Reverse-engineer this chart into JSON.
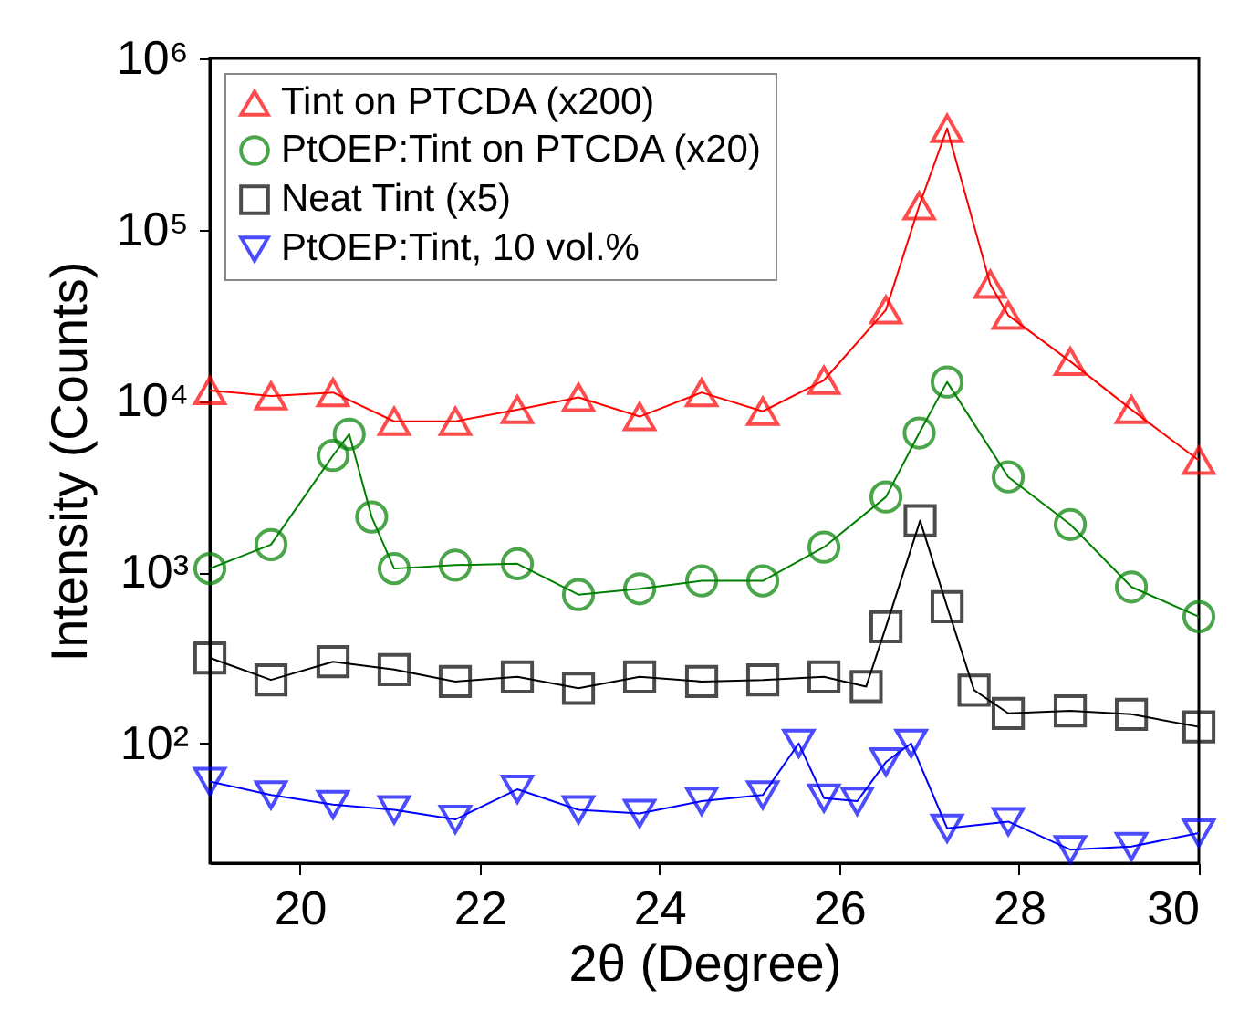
{
  "chart_data": {
    "type": "line",
    "xlabel": "2θ (Degree)",
    "ylabel": "Intensity (Counts)",
    "xlim": [
      19,
      30
    ],
    "xticks": [
      20,
      22,
      24,
      26,
      28,
      30
    ],
    "ylim": [
      20,
      1000000
    ],
    "yticks": [
      {
        "value": 100,
        "label": "10²"
      },
      {
        "value": 1000,
        "label": "10³"
      },
      {
        "value": 10000,
        "label": "10⁴"
      },
      {
        "value": 100000,
        "label": "10⁵"
      },
      {
        "value": 1000000,
        "label": "10⁶"
      }
    ],
    "log": "y",
    "grid": false,
    "legend": "top left",
    "series": [
      {
        "name": "Tint on PTCDA (x200)",
        "color": "#ff0000",
        "marker": "triangle",
        "x": [
          19.0,
          19.68,
          20.37,
          21.05,
          21.73,
          22.42,
          23.1,
          23.78,
          24.47,
          25.15,
          25.83,
          26.52,
          26.89,
          27.2,
          27.68,
          27.88,
          28.57,
          29.25,
          30.0
        ],
        "values": [
          11500,
          10700,
          11200,
          7600,
          7600,
          8900,
          10500,
          8100,
          11200,
          8700,
          13200,
          34000,
          138000,
          390000,
          48000,
          31600,
          17000,
          8900,
          4500
        ]
      },
      {
        "name": "PtOEP:Tint on PTCDA (x20)",
        "color": "#008000",
        "marker": "circle",
        "x": [
          19.0,
          19.68,
          20.37,
          20.55,
          20.8,
          21.05,
          21.73,
          22.42,
          23.1,
          23.78,
          24.47,
          25.15,
          25.83,
          26.52,
          26.89,
          27.2,
          27.88,
          28.57,
          29.25,
          30.0
        ],
        "values": [
          1050,
          1450,
          4800,
          6400,
          2100,
          1050,
          1100,
          1120,
          740,
          800,
          890,
          890,
          1400,
          2750,
          6500,
          12900,
          3600,
          1900,
          820,
          550
        ]
      },
      {
        "name": "Neat Tint (x5)",
        "color": "#000000",
        "marker": "square",
        "x": [
          19.0,
          19.68,
          20.37,
          21.05,
          21.73,
          22.42,
          23.1,
          23.78,
          24.47,
          25.15,
          25.83,
          26.3,
          26.52,
          26.9,
          27.2,
          27.5,
          27.88,
          28.57,
          29.25,
          30.0
        ],
        "values": [
          316,
          235,
          300,
          270,
          230,
          245,
          210,
          245,
          230,
          235,
          245,
          215,
          480,
          2000,
          630,
          205,
          150,
          155,
          148,
          125
        ]
      },
      {
        "name": "PtOEP:Tint, 10 vol.%",
        "color": "#0000ff",
        "marker": "triangle-down",
        "x": [
          19.0,
          19.68,
          20.37,
          21.05,
          21.73,
          22.42,
          23.1,
          23.78,
          24.47,
          25.15,
          25.55,
          25.83,
          26.2,
          26.52,
          26.8,
          27.2,
          27.88,
          28.57,
          29.25,
          30.0
        ],
        "values": [
          60,
          50,
          44,
          41,
          36,
          54,
          41,
          39,
          46,
          50,
          100,
          48,
          46,
          78,
          100,
          32,
          35,
          24,
          25,
          30
        ]
      }
    ]
  }
}
